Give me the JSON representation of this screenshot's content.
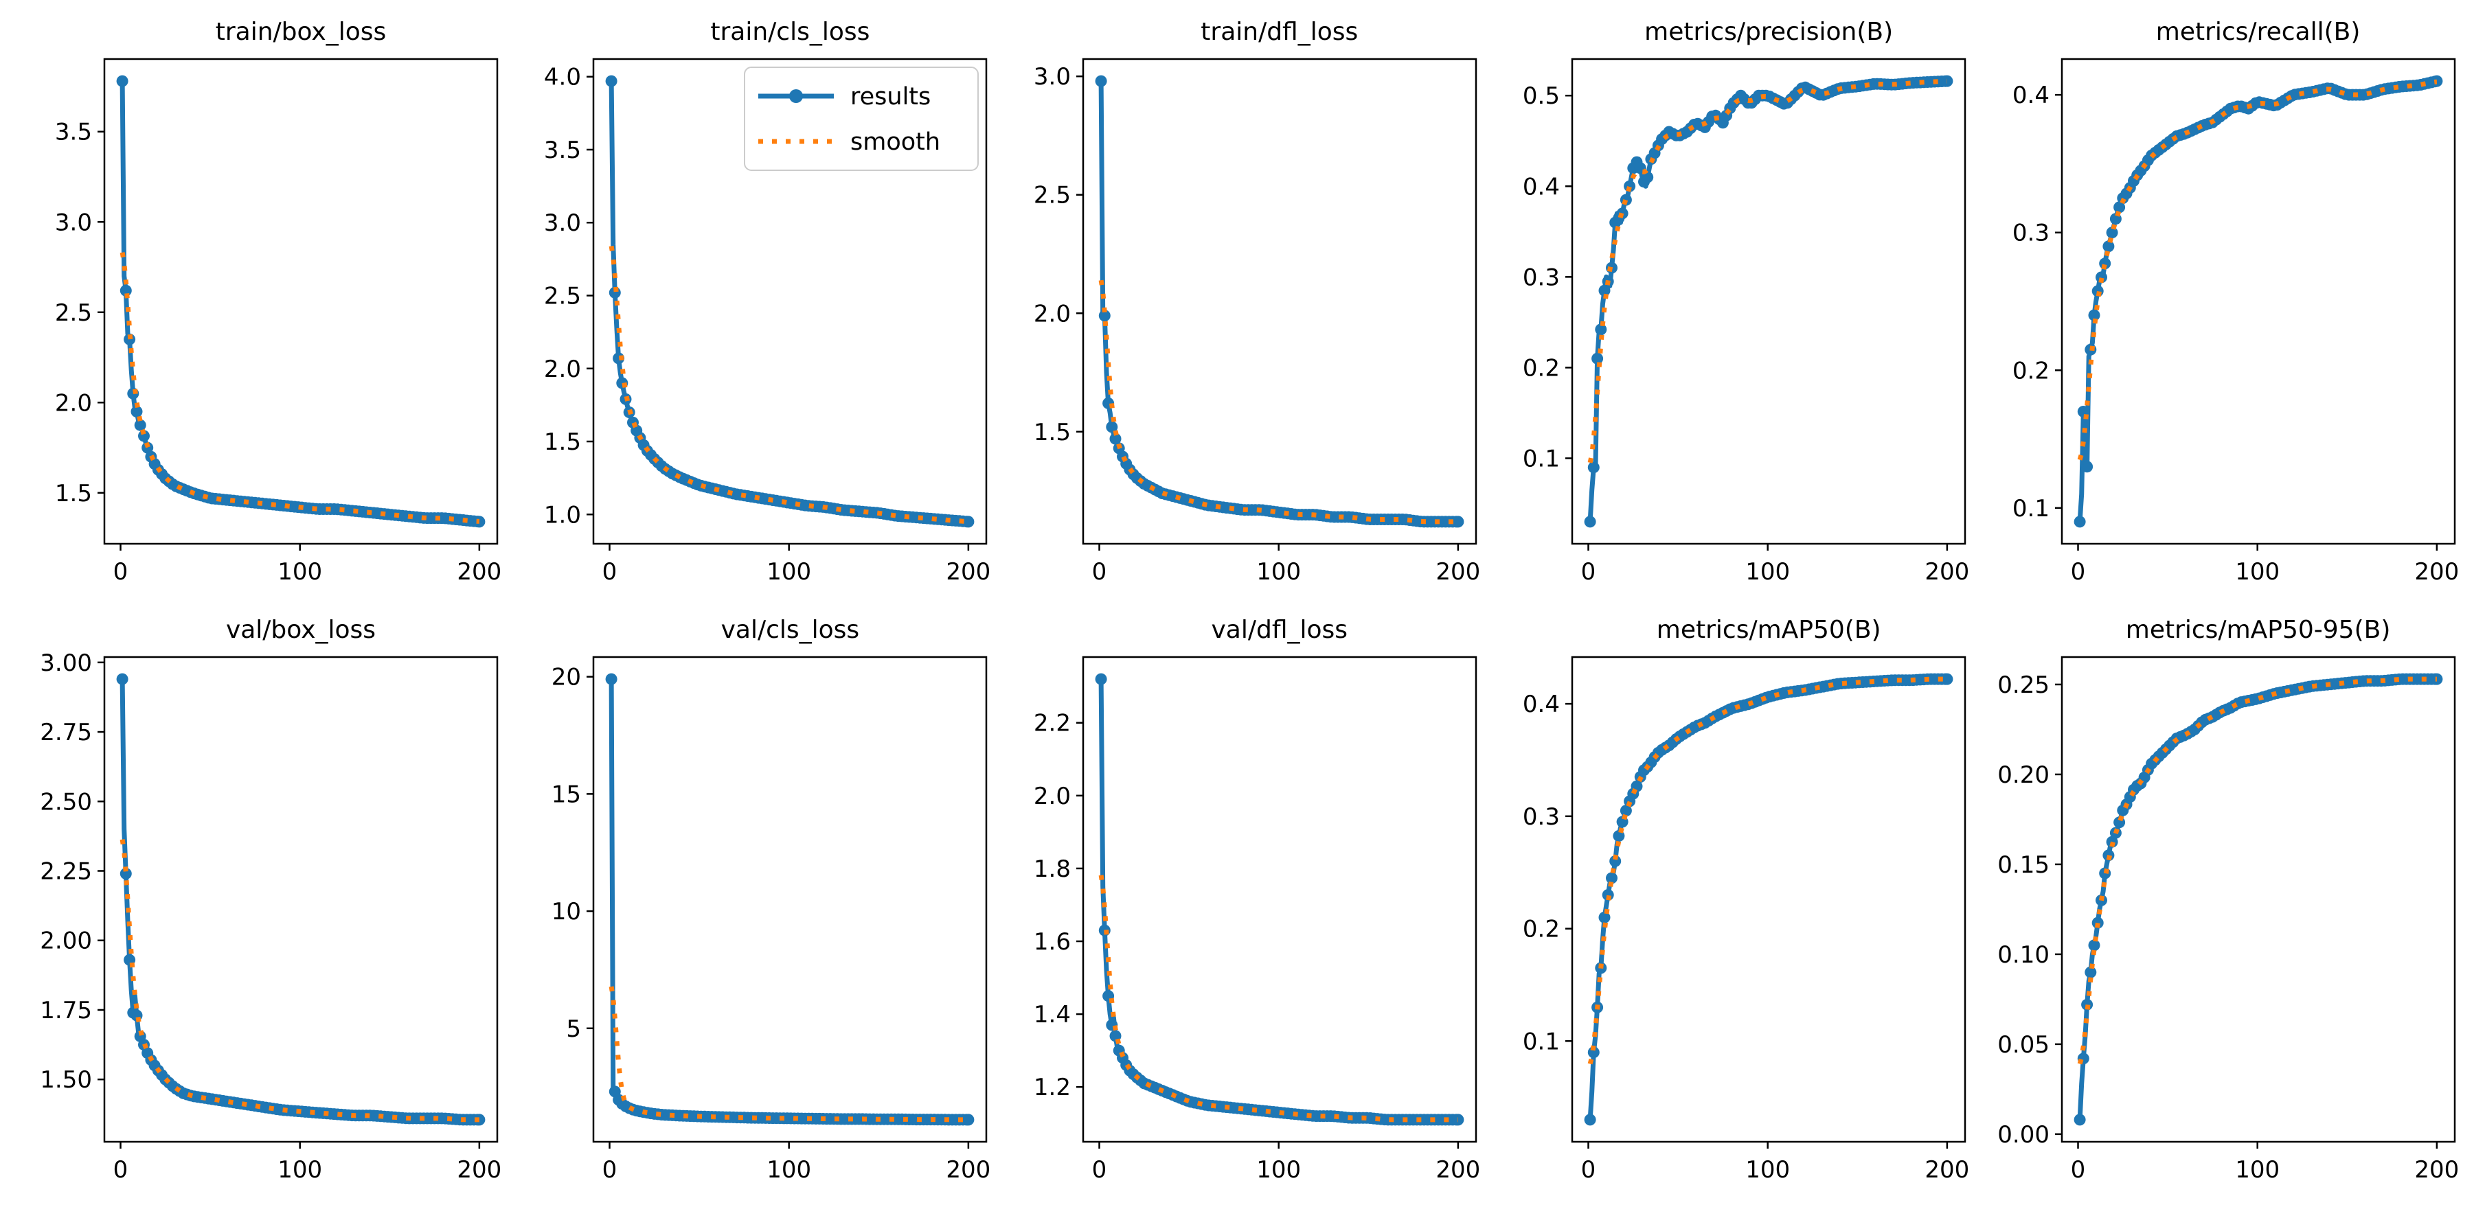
{
  "page": {
    "background": "#ffffff",
    "figure": "YOLO training results grid"
  },
  "legend": {
    "results_label": "results",
    "smooth_label": "smooth",
    "results_color": "#1f77b4",
    "smooth_color": "#ff7f0e",
    "smooth_definition": "gaussian smoothing of results, sigma=3"
  },
  "axes_style": {
    "spine_color": "#000000",
    "tick_color": "#000000"
  },
  "chart_data": [
    {
      "type": "line",
      "title": "train/box_loss",
      "x_ticks": [
        "0",
        "100",
        "200"
      ],
      "x_tick_values": [
        0,
        100,
        200
      ],
      "y_ticks": [
        "1.5",
        "2.0",
        "2.5",
        "3.0",
        "3.5"
      ],
      "xlim": [
        -9,
        210
      ],
      "ylim": [
        1.218,
        3.902
      ],
      "legend_visible": false,
      "x": [
        1,
        2,
        3,
        4,
        5,
        6,
        7,
        8,
        9,
        10,
        12,
        14,
        16,
        18,
        20,
        25,
        30,
        35,
        40,
        50,
        60,
        70,
        80,
        90,
        100,
        110,
        120,
        130,
        140,
        150,
        160,
        170,
        180,
        190,
        200
      ],
      "series": [
        {
          "name": "results",
          "values": [
            3.78,
            2.7,
            2.62,
            2.38,
            2.35,
            2.18,
            2.05,
            1.97,
            1.95,
            1.9,
            1.85,
            1.78,
            1.72,
            1.68,
            1.64,
            1.58,
            1.54,
            1.52,
            1.5,
            1.47,
            1.46,
            1.45,
            1.44,
            1.43,
            1.42,
            1.41,
            1.41,
            1.4,
            1.39,
            1.38,
            1.37,
            1.36,
            1.36,
            1.35,
            1.34
          ]
        },
        {
          "name": "smooth",
          "derived": "gaussian(results, sigma=3)"
        }
      ]
    },
    {
      "type": "line",
      "title": "train/cls_loss",
      "x_ticks": [
        "0",
        "100",
        "200"
      ],
      "x_tick_values": [
        0,
        100,
        200
      ],
      "y_ticks": [
        "1.0",
        "1.5",
        "2.0",
        "2.5",
        "3.0",
        "3.5",
        "4.0"
      ],
      "xlim": [
        -9,
        210
      ],
      "ylim": [
        0.799,
        4.121
      ],
      "legend_visible": true,
      "x": [
        1,
        2,
        3,
        4,
        5,
        6,
        7,
        8,
        9,
        10,
        12,
        14,
        16,
        18,
        20,
        25,
        30,
        35,
        40,
        50,
        60,
        70,
        80,
        90,
        100,
        110,
        120,
        130,
        140,
        150,
        160,
        170,
        180,
        190,
        200
      ],
      "series": [
        {
          "name": "results",
          "values": [
            3.97,
            2.85,
            2.52,
            2.27,
            2.07,
            1.97,
            1.9,
            1.84,
            1.79,
            1.74,
            1.66,
            1.6,
            1.55,
            1.5,
            1.45,
            1.38,
            1.32,
            1.28,
            1.25,
            1.2,
            1.17,
            1.14,
            1.12,
            1.1,
            1.08,
            1.06,
            1.05,
            1.03,
            1.02,
            1.01,
            0.99,
            0.98,
            0.97,
            0.96,
            0.95
          ]
        },
        {
          "name": "smooth",
          "derived": "gaussian(results, sigma=3)"
        }
      ]
    },
    {
      "type": "line",
      "title": "train/dfl_loss",
      "x_ticks": [
        "0",
        "100",
        "200"
      ],
      "x_tick_values": [
        0,
        100,
        200
      ],
      "y_ticks": [
        "1.5",
        "2.0",
        "2.5",
        "3.0"
      ],
      "xlim": [
        -9,
        210
      ],
      "ylim": [
        1.027,
        3.073
      ],
      "legend_visible": false,
      "x": [
        1,
        2,
        3,
        4,
        5,
        6,
        7,
        8,
        9,
        10,
        12,
        14,
        16,
        18,
        20,
        25,
        30,
        35,
        40,
        50,
        60,
        70,
        80,
        90,
        100,
        110,
        120,
        130,
        140,
        150,
        160,
        170,
        180,
        190,
        200
      ],
      "series": [
        {
          "name": "results",
          "values": [
            2.98,
            2.0,
            1.99,
            1.75,
            1.62,
            1.58,
            1.52,
            1.49,
            1.47,
            1.45,
            1.41,
            1.38,
            1.35,
            1.33,
            1.31,
            1.28,
            1.26,
            1.24,
            1.23,
            1.21,
            1.19,
            1.18,
            1.17,
            1.17,
            1.16,
            1.15,
            1.15,
            1.14,
            1.14,
            1.13,
            1.13,
            1.13,
            1.12,
            1.12,
            1.12
          ]
        },
        {
          "name": "smooth",
          "derived": "gaussian(results, sigma=3)"
        }
      ]
    },
    {
      "type": "line",
      "title": "metrics/precision(B)",
      "x_ticks": [
        "0",
        "100",
        "200"
      ],
      "x_tick_values": [
        0,
        100,
        200
      ],
      "y_ticks": [
        "0.1",
        "0.2",
        "0.3",
        "0.4",
        "0.5"
      ],
      "xlim": [
        -9,
        210
      ],
      "ylim": [
        0.0057,
        0.5403
      ],
      "legend_visible": false,
      "x": [
        1,
        2,
        3,
        4,
        5,
        6,
        7,
        8,
        9,
        10,
        12,
        14,
        15,
        16,
        18,
        20,
        22,
        25,
        28,
        30,
        32,
        35,
        38,
        40,
        45,
        50,
        55,
        60,
        65,
        70,
        75,
        80,
        85,
        90,
        95,
        100,
        110,
        120,
        125,
        130,
        140,
        150,
        160,
        170,
        180,
        190,
        200
      ],
      "series": [
        {
          "name": "results",
          "values": [
            0.03,
            0.065,
            0.09,
            0.092,
            0.21,
            0.24,
            0.242,
            0.27,
            0.285,
            0.3,
            0.29,
            0.33,
            0.36,
            0.37,
            0.36,
            0.38,
            0.39,
            0.42,
            0.43,
            0.41,
            0.4,
            0.43,
            0.44,
            0.45,
            0.46,
            0.455,
            0.46,
            0.47,
            0.465,
            0.48,
            0.47,
            0.49,
            0.5,
            0.49,
            0.5,
            0.5,
            0.49,
            0.51,
            0.505,
            0.5,
            0.508,
            0.51,
            0.513,
            0.512,
            0.514,
            0.515,
            0.516
          ]
        },
        {
          "name": "smooth",
          "derived": "gaussian(results, sigma=3)"
        }
      ]
    },
    {
      "type": "line",
      "title": "metrics/recall(B)",
      "x_ticks": [
        "0",
        "100",
        "200"
      ],
      "x_tick_values": [
        0,
        100,
        200
      ],
      "y_ticks": [
        "0.1",
        "0.2",
        "0.3",
        "0.4"
      ],
      "xlim": [
        -9,
        210
      ],
      "ylim": [
        0.074,
        0.426
      ],
      "legend_visible": false,
      "x": [
        1,
        2,
        3,
        4,
        5,
        6,
        7,
        8,
        9,
        10,
        12,
        14,
        16,
        18,
        20,
        22,
        25,
        28,
        30,
        32,
        35,
        38,
        40,
        45,
        50,
        55,
        60,
        65,
        70,
        75,
        80,
        85,
        90,
        95,
        100,
        110,
        120,
        130,
        140,
        150,
        160,
        170,
        180,
        190,
        200
      ],
      "series": [
        {
          "name": "results",
          "values": [
            0.09,
            0.11,
            0.17,
            0.16,
            0.13,
            0.21,
            0.215,
            0.22,
            0.24,
            0.25,
            0.265,
            0.27,
            0.285,
            0.295,
            0.305,
            0.315,
            0.325,
            0.33,
            0.335,
            0.34,
            0.345,
            0.35,
            0.355,
            0.36,
            0.365,
            0.37,
            0.372,
            0.375,
            0.378,
            0.38,
            0.385,
            0.39,
            0.392,
            0.39,
            0.395,
            0.392,
            0.4,
            0.402,
            0.405,
            0.4,
            0.4,
            0.404,
            0.406,
            0.407,
            0.41
          ]
        },
        {
          "name": "smooth",
          "derived": "gaussian(results, sigma=3)"
        }
      ]
    },
    {
      "type": "line",
      "title": "val/box_loss",
      "x_ticks": [
        "0",
        "100",
        "200"
      ],
      "x_tick_values": [
        0,
        100,
        200
      ],
      "y_ticks": [
        "1.50",
        "1.75",
        "2.00",
        "2.25",
        "2.50",
        "2.75",
        "3.00"
      ],
      "xlim": [
        -9,
        210
      ],
      "ylim": [
        1.2757,
        3.0193
      ],
      "legend_visible": false,
      "x": [
        1,
        2,
        3,
        4,
        5,
        6,
        7,
        8,
        9,
        10,
        12,
        14,
        16,
        18,
        20,
        25,
        30,
        35,
        40,
        50,
        60,
        70,
        80,
        90,
        100,
        110,
        120,
        130,
        140,
        150,
        160,
        170,
        180,
        190,
        200
      ],
      "series": [
        {
          "name": "results",
          "values": [
            2.94,
            2.4,
            2.24,
            2.07,
            1.93,
            1.82,
            1.74,
            1.8,
            1.73,
            1.67,
            1.64,
            1.61,
            1.58,
            1.56,
            1.54,
            1.5,
            1.47,
            1.45,
            1.44,
            1.43,
            1.42,
            1.41,
            1.4,
            1.39,
            1.385,
            1.38,
            1.375,
            1.37,
            1.37,
            1.365,
            1.36,
            1.36,
            1.36,
            1.355,
            1.355
          ]
        },
        {
          "name": "smooth",
          "derived": "gaussian(results, sigma=3)"
        }
      ]
    },
    {
      "type": "line",
      "title": "val/cls_loss",
      "x_ticks": [
        "0",
        "100",
        "200"
      ],
      "x_tick_values": [
        0,
        100,
        200
      ],
      "y_ticks": [
        "5",
        "10",
        "15",
        "20"
      ],
      "xlim": [
        -9,
        210
      ],
      "ylim": [
        0.16,
        20.84
      ],
      "legend_visible": false,
      "x": [
        1,
        2,
        3,
        4,
        5,
        6,
        7,
        8,
        9,
        10,
        12,
        14,
        16,
        18,
        20,
        25,
        30,
        35,
        40,
        50,
        60,
        70,
        80,
        90,
        100,
        110,
        120,
        130,
        140,
        150,
        160,
        170,
        180,
        190,
        200
      ],
      "series": [
        {
          "name": "results",
          "values": [
            19.9,
            2.45,
            2.3,
            2.1,
            1.95,
            1.85,
            1.78,
            1.72,
            1.67,
            1.63,
            1.56,
            1.51,
            1.47,
            1.44,
            1.41,
            1.35,
            1.31,
            1.29,
            1.27,
            1.24,
            1.22,
            1.2,
            1.18,
            1.17,
            1.16,
            1.15,
            1.14,
            1.13,
            1.13,
            1.12,
            1.12,
            1.11,
            1.11,
            1.1,
            1.1
          ]
        },
        {
          "name": "smooth",
          "derived": "gaussian(results, sigma=3)"
        }
      ]
    },
    {
      "type": "line",
      "title": "val/dfl_loss",
      "x_ticks": [
        "0",
        "100",
        "200"
      ],
      "x_tick_values": [
        0,
        100,
        200
      ],
      "y_ticks": [
        "1.2",
        "1.4",
        "1.6",
        "1.8",
        "2.0",
        "2.2"
      ],
      "xlim": [
        -9,
        210
      ],
      "ylim": [
        1.0495,
        2.3805
      ],
      "legend_visible": false,
      "x": [
        1,
        2,
        3,
        4,
        5,
        6,
        7,
        8,
        9,
        10,
        12,
        14,
        16,
        18,
        20,
        25,
        30,
        35,
        40,
        50,
        60,
        70,
        80,
        90,
        100,
        110,
        120,
        130,
        140,
        150,
        160,
        170,
        180,
        190,
        200
      ],
      "series": [
        {
          "name": "results",
          "values": [
            2.32,
            1.75,
            1.63,
            1.52,
            1.45,
            1.4,
            1.37,
            1.39,
            1.34,
            1.31,
            1.29,
            1.27,
            1.25,
            1.24,
            1.23,
            1.21,
            1.2,
            1.19,
            1.18,
            1.16,
            1.15,
            1.145,
            1.14,
            1.135,
            1.13,
            1.125,
            1.12,
            1.12,
            1.115,
            1.115,
            1.11,
            1.11,
            1.11,
            1.11,
            1.11
          ]
        },
        {
          "name": "smooth",
          "derived": "gaussian(results, sigma=3)"
        }
      ]
    },
    {
      "type": "line",
      "title": "metrics/mAP50(B)",
      "x_ticks": [
        "0",
        "100",
        "200"
      ],
      "x_tick_values": [
        0,
        100,
        200
      ],
      "y_ticks": [
        "0.1",
        "0.2",
        "0.3",
        "0.4"
      ],
      "xlim": [
        -9,
        210
      ],
      "ylim": [
        0.0104,
        0.4416
      ],
      "legend_visible": false,
      "x": [
        1,
        2,
        3,
        4,
        5,
        6,
        7,
        8,
        9,
        10,
        12,
        14,
        15,
        16,
        18,
        20,
        22,
        25,
        28,
        30,
        32,
        35,
        38,
        40,
        45,
        50,
        55,
        60,
        65,
        70,
        75,
        80,
        85,
        90,
        95,
        100,
        110,
        120,
        130,
        140,
        150,
        160,
        170,
        180,
        190,
        200
      ],
      "series": [
        {
          "name": "results",
          "values": [
            0.03,
            0.055,
            0.09,
            0.105,
            0.13,
            0.16,
            0.165,
            0.19,
            0.21,
            0.22,
            0.24,
            0.25,
            0.26,
            0.275,
            0.29,
            0.3,
            0.31,
            0.32,
            0.33,
            0.34,
            0.342,
            0.348,
            0.355,
            0.358,
            0.363,
            0.37,
            0.375,
            0.38,
            0.383,
            0.388,
            0.392,
            0.396,
            0.398,
            0.4,
            0.403,
            0.406,
            0.41,
            0.412,
            0.415,
            0.418,
            0.419,
            0.42,
            0.421,
            0.421,
            0.422,
            0.422
          ]
        },
        {
          "name": "smooth",
          "derived": "gaussian(results, sigma=3)"
        }
      ]
    },
    {
      "type": "line",
      "title": "metrics/mAP50-95(B)",
      "x_ticks": [
        "0",
        "100",
        "200"
      ],
      "x_tick_values": [
        0,
        100,
        200
      ],
      "y_ticks": [
        "0.00",
        "0.05",
        "0.10",
        "0.15",
        "0.20",
        "0.25"
      ],
      "xlim": [
        -9,
        210
      ],
      "ylim": [
        -0.00425,
        0.26525
      ],
      "legend_visible": false,
      "x": [
        1,
        2,
        3,
        4,
        5,
        6,
        7,
        8,
        9,
        10,
        12,
        14,
        15,
        16,
        18,
        20,
        22,
        25,
        28,
        30,
        32,
        35,
        38,
        40,
        45,
        50,
        55,
        60,
        65,
        70,
        75,
        80,
        85,
        90,
        95,
        100,
        110,
        120,
        130,
        140,
        150,
        160,
        170,
        180,
        190,
        200
      ],
      "series": [
        {
          "name": "results",
          "values": [
            0.008,
            0.028,
            0.042,
            0.055,
            0.072,
            0.085,
            0.09,
            0.1,
            0.105,
            0.11,
            0.125,
            0.135,
            0.145,
            0.15,
            0.16,
            0.165,
            0.17,
            0.18,
            0.185,
            0.19,
            0.193,
            0.195,
            0.2,
            0.205,
            0.21,
            0.215,
            0.22,
            0.222,
            0.225,
            0.23,
            0.232,
            0.235,
            0.237,
            0.24,
            0.241,
            0.242,
            0.245,
            0.247,
            0.249,
            0.25,
            0.251,
            0.252,
            0.252,
            0.253,
            0.253,
            0.253
          ]
        },
        {
          "name": "smooth",
          "derived": "gaussian(results, sigma=3)"
        }
      ]
    }
  ]
}
